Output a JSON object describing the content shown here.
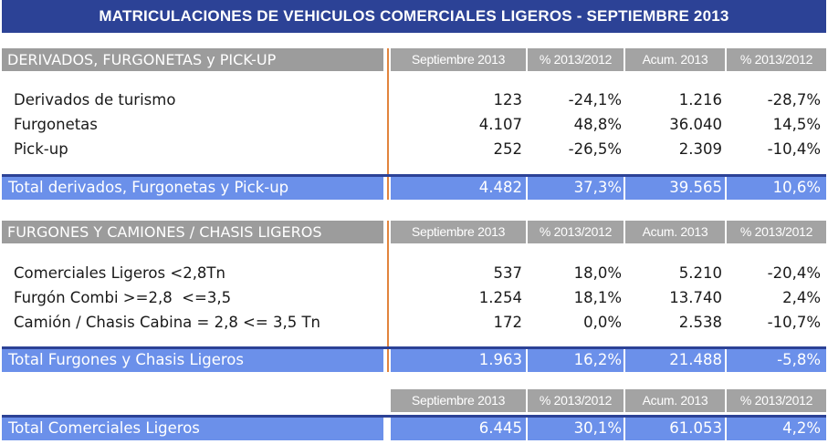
{
  "title": "MATRICULACIONES DE VEHICULOS COMERCIALES LIGEROS - SEPTIEMBRE 2013",
  "column_headers": [
    "Septiembre 2013",
    "% 2013/2012",
    "Acum. 2013",
    "% 2013/2012"
  ],
  "section1": {
    "label": "DERIVADOS, FURGONETAS y PICK-UP",
    "rows": [
      {
        "label": "Derivados de turismo",
        "sep": "123",
        "pct": "-24,1%",
        "acum": "1.216",
        "pct_acum": "-28,7%"
      },
      {
        "label": "Furgonetas",
        "sep": "4.107",
        "pct": "48,8%",
        "acum": "36.040",
        "pct_acum": "14,5%"
      },
      {
        "label": "Pick-up",
        "sep": "252",
        "pct": "-26,5%",
        "acum": "2.309",
        "pct_acum": "-10,4%"
      }
    ],
    "total": {
      "label": "Total derivados, Furgonetas y Pick-up",
      "sep": "4.482",
      "pct": "37,3%",
      "acum": "39.565",
      "pct_acum": "10,6%"
    }
  },
  "section2": {
    "label": "FURGONES Y CAMIONES / CHASIS LIGEROS",
    "rows": [
      {
        "label": "Comerciales Ligeros <2,8Tn",
        "sep": "537",
        "pct": "18,0%",
        "acum": "5.210",
        "pct_acum": "-20,4%"
      },
      {
        "label": "Furgón Combi >=2,8  <=3,5",
        "sep": "1.254",
        "pct": "18,1%",
        "acum": "13.740",
        "pct_acum": "2,4%"
      },
      {
        "label": "Camión / Chasis Cabina = 2,8 <= 3,5 Tn",
        "sep": "172",
        "pct": "0,0%",
        "acum": "2.538",
        "pct_acum": "-10,7%"
      }
    ],
    "total": {
      "label": "Total Furgones y Chasis Ligeros",
      "sep": "1.963",
      "pct": "16,2%",
      "acum": "21.488",
      "pct_acum": "-5,8%"
    }
  },
  "grand_total": {
    "label": "Total Comerciales Ligeros",
    "sep": "6.445",
    "pct": "30,1%",
    "acum": "61.053",
    "pct_acum": "4,2%"
  },
  "colors": {
    "title_bg": "#2c4296",
    "header_bg": "#9c9c9c",
    "total_bg": "#6b90ea",
    "divider": "#e2843d"
  }
}
